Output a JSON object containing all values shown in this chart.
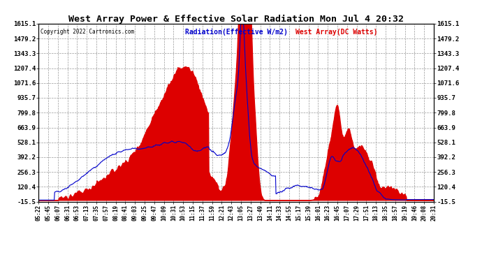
{
  "title": "West Array Power & Effective Solar Radiation Mon Jul 4 20:32",
  "copyright": "Copyright 2022 Cartronics.com",
  "legend_radiation": "Radiation(Effective W/m2)",
  "legend_west": "West Array(DC Watts)",
  "yticks": [
    1615.1,
    1479.2,
    1343.3,
    1207.4,
    1071.6,
    935.7,
    799.8,
    663.9,
    528.1,
    392.2,
    256.3,
    120.4,
    -15.5
  ],
  "ymin": -15.5,
  "ymax": 1615.1,
  "background_color": "#ffffff",
  "plot_bg_color": "#ffffff",
  "radiation_color": "#0000cc",
  "west_fill_color": "#dd0000",
  "grid_color": "#999999",
  "title_color": "#000000",
  "copyright_color": "#000000",
  "radiation_legend_color": "#0000cc",
  "west_legend_color": "#dd0000",
  "xtick_labels": [
    "05:22",
    "05:45",
    "06:07",
    "06:31",
    "06:53",
    "07:13",
    "07:35",
    "07:57",
    "08:19",
    "08:41",
    "09:03",
    "09:25",
    "09:47",
    "10:09",
    "10:31",
    "10:53",
    "11:15",
    "11:37",
    "11:59",
    "12:21",
    "12:43",
    "13:05",
    "13:27",
    "13:49",
    "14:11",
    "14:33",
    "14:55",
    "15:17",
    "15:39",
    "16:01",
    "16:23",
    "16:45",
    "17:07",
    "17:29",
    "17:51",
    "18:13",
    "18:35",
    "18:57",
    "19:19",
    "19:46",
    "20:08",
    "20:31"
  ]
}
